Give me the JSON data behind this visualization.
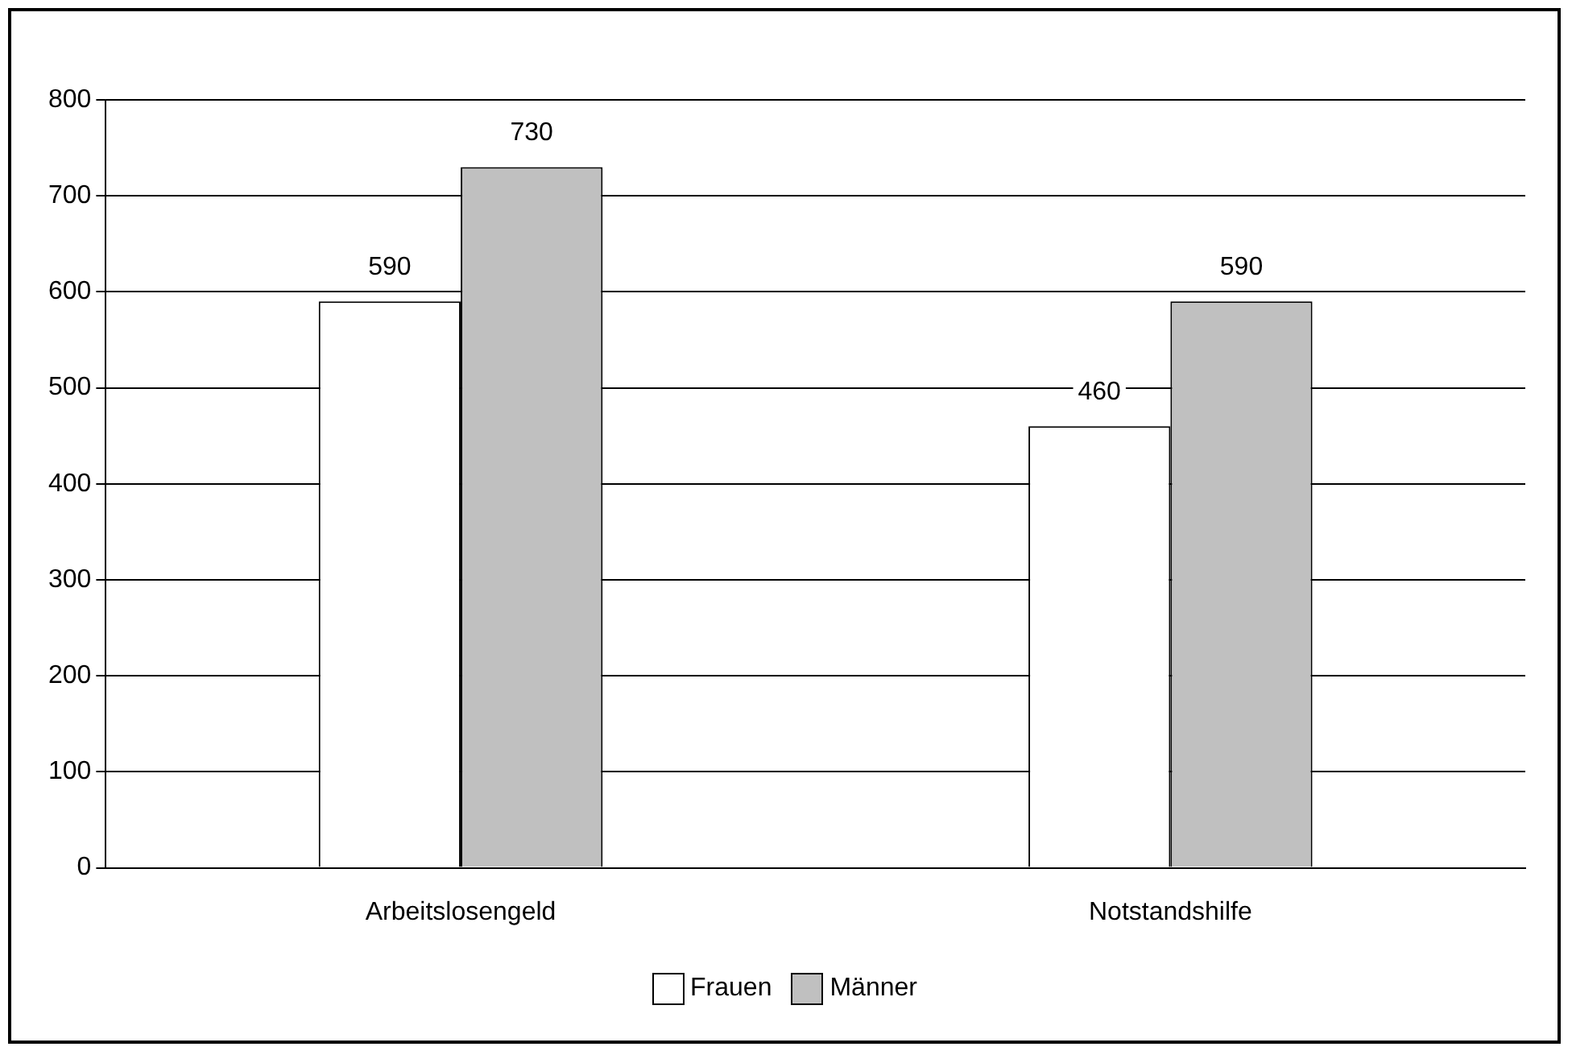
{
  "chart_data": {
    "type": "bar",
    "categories": [
      "Arbeitslosengeld",
      "Notstandshilfe"
    ],
    "series": [
      {
        "name": "Frauen",
        "color": "#ffffff",
        "values": [
          590,
          460
        ]
      },
      {
        "name": "Männer",
        "color": "#c0c0c0",
        "values": [
          730,
          590
        ]
      }
    ],
    "ylim": [
      0,
      800
    ],
    "yticks": [
      0,
      100,
      200,
      300,
      400,
      500,
      600,
      700,
      800
    ],
    "grid": "y",
    "legend": "bottom",
    "data_labels": true
  }
}
